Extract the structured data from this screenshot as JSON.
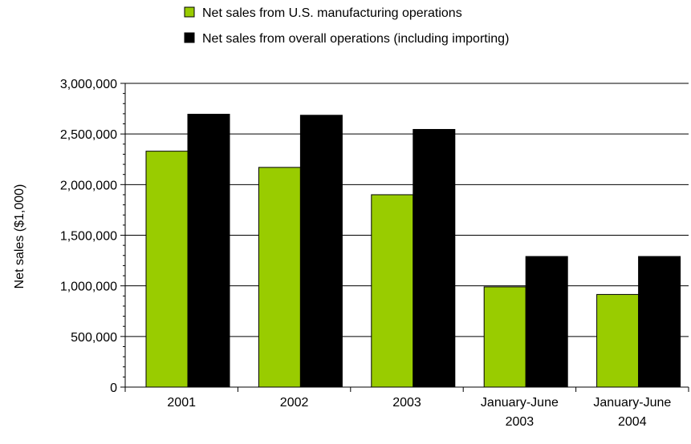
{
  "chart_data": {
    "type": "bar",
    "categories": [
      [
        "2001"
      ],
      [
        "2002"
      ],
      [
        "2003"
      ],
      [
        "January-June",
        "2003"
      ],
      [
        "January-June",
        "2004"
      ]
    ],
    "series": [
      {
        "name": "Net sales from U.S. manufacturing operations",
        "color": "#99cc00",
        "values": [
          2330000,
          2170000,
          1900000,
          990000,
          915000
        ]
      },
      {
        "name": "Net sales from overall operations (including importing)",
        "color": "#000000",
        "values": [
          2695000,
          2685000,
          2545000,
          1290000,
          1290000
        ]
      }
    ],
    "ylabel": "Net sales ($1,000)",
    "ylim": [
      0,
      3000000
    ],
    "yticks": [
      0,
      500000,
      1000000,
      1500000,
      2000000,
      2500000,
      3000000
    ],
    "ytick_labels": [
      "0",
      "500,000",
      "1,000,000",
      "1,500,000",
      "2,000,000",
      "2,500,000",
      "3,000,000"
    ],
    "grid": true,
    "legend_position": "top"
  }
}
